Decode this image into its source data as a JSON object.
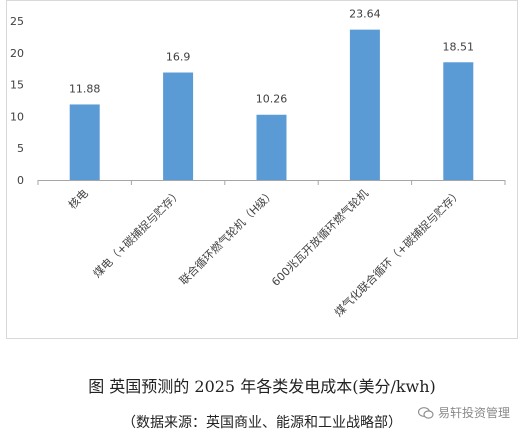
{
  "caption": {
    "title": "图  英国预测的 2025 年各类发电成本(美分/kwh)",
    "source": "（数据来源：英国商业、能源和工业战略部）"
  },
  "watermark": {
    "text": "易轩投资管理",
    "icon": "wechat-icon"
  },
  "colors": {
    "bar": "#5b9bd5",
    "frame": "#d9d9d9",
    "axis": "#a6a6a6",
    "text": "#404040"
  },
  "chart_data": {
    "type": "bar",
    "title": "",
    "xlabel": "",
    "ylabel": "",
    "categories": [
      "核电",
      "煤电（+碳捕捉与贮存）",
      "联合循环燃气轮机（H级）",
      "600兆瓦开放循环燃气轮机",
      "煤气化联合循环（+碳捕捉与贮存）"
    ],
    "values": [
      11.88,
      16.9,
      10.26,
      23.64,
      18.51
    ],
    "data_labels": [
      "11.88",
      "16.9",
      "10.26",
      "23.64",
      "18.51"
    ],
    "ylim": [
      0,
      25
    ],
    "yticks": [
      0,
      5,
      10,
      15,
      20,
      25
    ],
    "grid": false,
    "legend": "none"
  }
}
